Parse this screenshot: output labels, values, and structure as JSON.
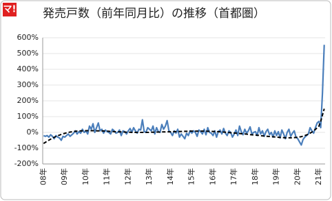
{
  "logo": "マ!",
  "chart_data": {
    "type": "line",
    "title": "発売戸数（前年同月比）の推移（首都圏）",
    "categories": [
      "08年",
      null,
      null,
      null,
      null,
      null,
      null,
      null,
      null,
      null,
      null,
      null,
      "09年",
      null,
      null,
      null,
      null,
      null,
      null,
      null,
      null,
      null,
      null,
      null,
      "10年",
      null,
      null,
      null,
      null,
      null,
      null,
      null,
      null,
      null,
      null,
      null,
      "11年",
      null,
      null,
      null,
      null,
      null,
      null,
      null,
      null,
      null,
      null,
      null,
      "12年",
      null,
      null,
      null,
      null,
      null,
      null,
      null,
      null,
      null,
      null,
      null,
      "13年",
      null,
      null,
      null,
      null,
      null,
      null,
      null,
      null,
      null,
      null,
      null,
      "14年",
      null,
      null,
      null,
      null,
      null,
      null,
      null,
      null,
      null,
      null,
      null,
      "15年",
      null,
      null,
      null,
      null,
      null,
      null,
      null,
      null,
      null,
      null,
      null,
      "16年",
      null,
      null,
      null,
      null,
      null,
      null,
      null,
      null,
      null,
      null,
      null,
      "17年",
      null,
      null,
      null,
      null,
      null,
      null,
      null,
      null,
      null,
      null,
      null,
      "18年",
      null,
      null,
      null,
      null,
      null,
      null,
      null,
      null,
      null,
      null,
      null,
      "19年",
      null,
      null,
      null,
      null,
      null,
      null,
      null,
      null,
      null,
      null,
      null,
      "20年",
      null,
      null,
      null,
      null,
      null,
      null,
      null,
      null,
      null,
      null,
      null,
      "21年",
      null,
      null,
      null
    ],
    "series": [
      {
        "color": "#4a7ebb",
        "style": "solid",
        "values": [
          -20,
          -25,
          -20,
          -30,
          -15,
          -25,
          -40,
          -20,
          -30,
          -35,
          -50,
          -25,
          -30,
          -20,
          -10,
          -25,
          -15,
          -5,
          10,
          -10,
          5,
          -5,
          20,
          0,
          10,
          -10,
          40,
          20,
          55,
          0,
          30,
          60,
          10,
          20,
          -5,
          15,
          5,
          0,
          -10,
          20,
          10,
          -5,
          0,
          15,
          -20,
          10,
          5,
          -10,
          10,
          25,
          0,
          30,
          10,
          -5,
          20,
          15,
          80,
          5,
          0,
          30,
          20,
          10,
          40,
          -10,
          30,
          5,
          0,
          50,
          20,
          40,
          75,
          10,
          0,
          -20,
          10,
          -5,
          20,
          -30,
          -10,
          -25,
          -40,
          -5,
          -20,
          10,
          -5,
          10,
          0,
          -25,
          15,
          5,
          -10,
          20,
          -15,
          30,
          0,
          -5,
          -20,
          10,
          -30,
          5,
          15,
          -10,
          25,
          -5,
          -20,
          10,
          0,
          -30,
          -10,
          15,
          -20,
          40,
          5,
          -15,
          20,
          -5,
          10,
          35,
          -10,
          0,
          5,
          -20,
          30,
          -10,
          10,
          -25,
          5,
          20,
          -15,
          0,
          -30,
          10,
          -20,
          5,
          -35,
          15,
          -10,
          -40,
          0,
          20,
          -25,
          -5,
          10,
          -30,
          -40,
          -60,
          -80,
          -45,
          -30,
          -20,
          -10,
          30,
          10,
          -5,
          30,
          60,
          70,
          30,
          250,
          555
        ]
      },
      {
        "color": "#000000",
        "style": "dashed",
        "values": [
          -70,
          -63,
          -56,
          -49,
          -43,
          -37,
          -31,
          -26,
          -21,
          -17,
          -13,
          -9,
          -6,
          -3,
          0,
          2,
          4,
          6,
          7,
          8,
          9,
          10,
          10,
          11,
          11,
          11,
          11,
          11,
          11,
          11,
          10,
          10,
          10,
          9,
          9,
          8,
          8,
          7,
          6,
          6,
          5,
          4,
          4,
          3,
          3,
          2,
          2,
          1,
          1,
          1,
          0,
          0,
          0,
          0,
          0,
          0,
          0,
          0,
          0,
          0,
          0,
          1,
          1,
          1,
          2,
          2,
          2,
          3,
          3,
          3,
          4,
          4,
          4,
          5,
          5,
          5,
          6,
          6,
          6,
          7,
          7,
          7,
          7,
          8,
          8,
          8,
          8,
          8,
          8,
          8,
          8,
          8,
          8,
          7,
          7,
          7,
          6,
          6,
          5,
          5,
          4,
          3,
          2,
          1,
          0,
          -1,
          -2,
          -3,
          -4,
          -5,
          -6,
          -7,
          -8,
          -9,
          -10,
          -11,
          -12,
          -14,
          -15,
          -16,
          -17,
          -18,
          -19,
          -21,
          -22,
          -23,
          -24,
          -25,
          -26,
          -27,
          -28,
          -29,
          -30,
          -31,
          -32,
          -33,
          -33,
          -34,
          -34,
          -34,
          -34,
          -34,
          -33,
          -32,
          -31,
          -29,
          -27,
          -24,
          -20,
          -16,
          -11,
          -5,
          2,
          10,
          19,
          29,
          40,
          70,
          110,
          150
        ]
      }
    ],
    "ylim": [
      -200,
      600
    ],
    "yticks": [
      {
        "value": -200,
        "label": "-200%"
      },
      {
        "value": -100,
        "label": "-100%"
      },
      {
        "value": 0,
        "label": "0%"
      },
      {
        "value": 100,
        "label": "100%"
      },
      {
        "value": 200,
        "label": "200%"
      },
      {
        "value": 300,
        "label": "300%"
      },
      {
        "value": 400,
        "label": "400%"
      },
      {
        "value": 500,
        "label": "500%"
      },
      {
        "value": 600,
        "label": "600%"
      }
    ],
    "grid": true
  }
}
